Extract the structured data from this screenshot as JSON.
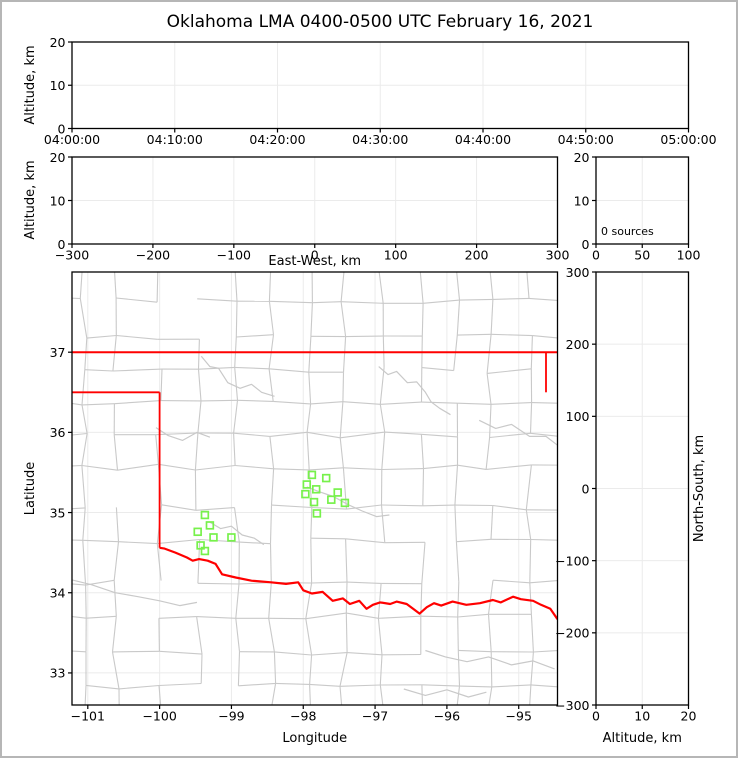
{
  "title": "Oklahoma LMA 0400-0500 UTC February 16, 2021",
  "colors": {
    "state_border": "#ff0000",
    "county_lines": "#c9c9c9",
    "station_marker": "#77f14b",
    "gridline": "#ebebeb",
    "spine": "#000000",
    "frame": "#b6b6b6",
    "background": "#ffffff"
  },
  "panels": {
    "time_height": {
      "ylabel": "Altitude, km",
      "xticks": [
        "04:00:00",
        "04:10:00",
        "04:20:00",
        "04:30:00",
        "04:40:00",
        "04:50:00",
        "05:00:00"
      ],
      "yticks": [
        0,
        10,
        20
      ],
      "ylim": [
        0,
        20
      ]
    },
    "ew_height": {
      "xlabel": "East-West, km",
      "ylabel": "Altitude, km",
      "xticks": [
        -300,
        -200,
        -100,
        0,
        100,
        200,
        300
      ],
      "xlim": [
        -300,
        300
      ],
      "yticks": [
        0,
        10,
        20
      ],
      "ylim": [
        0,
        20
      ]
    },
    "histogram": {
      "annotation": "0 sources",
      "xticks": [
        0,
        50,
        100
      ],
      "xlim": [
        0,
        100
      ],
      "yticks": [
        0,
        10,
        20
      ],
      "ylim": [
        0,
        20
      ]
    },
    "map": {
      "xlabel": "Longitude",
      "ylabel": "Latitude",
      "xticks": [
        -101,
        -100,
        -99,
        -98,
        -97,
        -96,
        -95
      ],
      "xlim": [
        -101.22,
        -94.46
      ],
      "yticks": [
        33,
        34,
        35,
        36,
        37
      ],
      "ylim": [
        32.6,
        38.0
      ]
    },
    "ns_height": {
      "xlabel": "Altitude, km",
      "ylabel": "North-South, km",
      "xticks": [
        0,
        10,
        20
      ],
      "xlim": [
        0,
        20
      ],
      "yticks": [
        -300,
        -200,
        -100,
        0,
        100,
        200,
        300
      ],
      "ylim": [
        -300,
        300
      ]
    }
  },
  "chart_data": [
    {
      "type": "scatter",
      "title": "Oklahoma LMA 0400-0500 UTC February 16, 2021",
      "ylabel": "Altitude, km",
      "x_ticks": [
        "04:00:00",
        "04:10:00",
        "04:20:00",
        "04:30:00",
        "04:40:00",
        "04:50:00",
        "05:00:00"
      ],
      "ylim": [
        0,
        20
      ],
      "points": [],
      "note": "empty panel, no lightning sources"
    },
    {
      "type": "scatter",
      "xlabel": "East-West, km",
      "ylabel": "Altitude, km",
      "xlim": [
        -300,
        300
      ],
      "ylim": [
        0,
        20
      ],
      "points": []
    },
    {
      "type": "histogram",
      "xlim": [
        0,
        100
      ],
      "ylim": [
        0,
        20
      ],
      "annotation": "0 sources",
      "points": []
    },
    {
      "type": "scatter",
      "xlabel": "Longitude",
      "ylabel": "Latitude",
      "xlim": [
        -101.22,
        -94.46
      ],
      "ylim": [
        32.6,
        38.0
      ],
      "series": [
        {
          "name": "lma-stations",
          "marker": "open-square",
          "color": "#77f14b",
          "points": [
            [
              -99.37,
              34.97
            ],
            [
              -99.3,
              34.84
            ],
            [
              -99.47,
              34.76
            ],
            [
              -99.25,
              34.69
            ],
            [
              -99.0,
              34.69
            ],
            [
              -99.43,
              34.59
            ],
            [
              -99.37,
              34.52
            ],
            [
              -97.88,
              35.47
            ],
            [
              -97.68,
              35.43
            ],
            [
              -97.95,
              35.35
            ],
            [
              -97.82,
              35.29
            ],
            [
              -97.97,
              35.23
            ],
            [
              -97.52,
              35.25
            ],
            [
              -97.61,
              35.16
            ],
            [
              -97.85,
              35.13
            ],
            [
              -97.42,
              35.12
            ],
            [
              -97.81,
              34.99
            ]
          ]
        }
      ]
    },
    {
      "type": "scatter",
      "xlabel": "Altitude, km",
      "ylabel": "North-South, km",
      "xlim": [
        0,
        20
      ],
      "ylim": [
        -300,
        300
      ],
      "points": []
    }
  ],
  "map_features": {
    "state_border": {
      "north_line": {
        "lat": 37.0,
        "lon": [
          -101.22,
          -94.46
        ]
      },
      "panhandle_south_line": {
        "lat": 36.5,
        "lon": [
          -101.22,
          -100.0
        ]
      },
      "west_vertical": {
        "lon": -100.0,
        "lat": [
          36.5,
          34.56
        ]
      },
      "missouri_vertical": {
        "lon": -94.62,
        "lat": [
          37.0,
          36.5
        ]
      },
      "red_river": [
        [
          -100.0,
          34.56
        ],
        [
          -99.93,
          34.55
        ],
        [
          -99.78,
          34.5
        ],
        [
          -99.62,
          34.44
        ],
        [
          -99.54,
          34.4
        ],
        [
          -99.45,
          34.42
        ],
        [
          -99.33,
          34.4
        ],
        [
          -99.22,
          34.36
        ],
        [
          -99.13,
          34.23
        ],
        [
          -98.94,
          34.19
        ],
        [
          -98.72,
          34.15
        ],
        [
          -98.45,
          34.13
        ],
        [
          -98.24,
          34.11
        ],
        [
          -98.07,
          34.13
        ],
        [
          -98.0,
          34.03
        ],
        [
          -97.88,
          33.99
        ],
        [
          -97.73,
          34.01
        ],
        [
          -97.59,
          33.9
        ],
        [
          -97.45,
          33.93
        ],
        [
          -97.35,
          33.86
        ],
        [
          -97.22,
          33.9
        ],
        [
          -97.12,
          33.8
        ],
        [
          -97.03,
          33.85
        ],
        [
          -96.93,
          33.88
        ],
        [
          -96.79,
          33.86
        ],
        [
          -96.7,
          33.89
        ],
        [
          -96.56,
          33.86
        ],
        [
          -96.47,
          33.8
        ],
        [
          -96.38,
          33.74
        ],
        [
          -96.28,
          33.82
        ],
        [
          -96.18,
          33.87
        ],
        [
          -96.08,
          33.84
        ],
        [
          -95.92,
          33.89
        ],
        [
          -95.73,
          33.85
        ],
        [
          -95.54,
          33.87
        ],
        [
          -95.36,
          33.91
        ],
        [
          -95.25,
          33.88
        ],
        [
          -95.08,
          33.95
        ],
        [
          -94.97,
          33.92
        ],
        [
          -94.8,
          33.9
        ],
        [
          -94.69,
          33.85
        ],
        [
          -94.56,
          33.8
        ],
        [
          -94.46,
          33.67
        ]
      ]
    },
    "rivers_gray": [
      [
        [
          -96.95,
          36.82
        ],
        [
          -96.82,
          36.72
        ],
        [
          -96.7,
          36.76
        ],
        [
          -96.55,
          36.62
        ],
        [
          -96.42,
          36.63
        ],
        [
          -96.3,
          36.5
        ],
        [
          -96.22,
          36.38
        ],
        [
          -96.1,
          36.3
        ],
        [
          -95.95,
          36.22
        ]
      ],
      [
        [
          -99.42,
          36.95
        ],
        [
          -99.3,
          36.82
        ],
        [
          -99.18,
          36.8
        ],
        [
          -99.05,
          36.62
        ],
        [
          -98.88,
          36.55
        ],
        [
          -98.72,
          36.6
        ],
        [
          -98.58,
          36.5
        ],
        [
          -98.4,
          36.45
        ]
      ],
      [
        [
          -100.05,
          36.06
        ],
        [
          -99.88,
          35.96
        ],
        [
          -99.68,
          35.9
        ],
        [
          -99.48,
          36.0
        ],
        [
          -99.3,
          35.94
        ]
      ],
      [
        [
          -99.3,
          34.88
        ],
        [
          -99.15,
          34.8
        ],
        [
          -99.0,
          34.83
        ],
        [
          -98.85,
          34.72
        ],
        [
          -98.68,
          34.68
        ],
        [
          -98.55,
          34.6
        ]
      ],
      [
        [
          -97.95,
          35.32
        ],
        [
          -97.78,
          35.26
        ],
        [
          -97.58,
          35.2
        ],
        [
          -97.38,
          35.1
        ],
        [
          -97.18,
          35.02
        ],
        [
          -96.98,
          34.95
        ],
        [
          -96.8,
          34.97
        ]
      ],
      [
        [
          -101.22,
          34.16
        ],
        [
          -100.95,
          34.1
        ],
        [
          -100.62,
          34.0
        ],
        [
          -100.3,
          33.95
        ],
        [
          -100.0,
          33.9
        ],
        [
          -99.72,
          33.84
        ],
        [
          -99.48,
          33.88
        ]
      ],
      [
        [
          -96.3,
          33.28
        ],
        [
          -96.02,
          33.2
        ],
        [
          -95.72,
          33.14
        ],
        [
          -95.42,
          33.2
        ],
        [
          -95.1,
          33.1
        ],
        [
          -94.8,
          33.15
        ],
        [
          -94.5,
          33.05
        ]
      ],
      [
        [
          -96.6,
          32.8
        ],
        [
          -96.3,
          32.72
        ],
        [
          -96.0,
          32.79
        ],
        [
          -95.7,
          32.7
        ],
        [
          -95.45,
          32.76
        ]
      ],
      [
        [
          -95.55,
          36.15
        ],
        [
          -95.32,
          36.05
        ],
        [
          -95.1,
          36.1
        ],
        [
          -94.85,
          35.95
        ],
        [
          -94.62,
          35.95
        ],
        [
          -94.46,
          35.84
        ]
      ]
    ]
  }
}
